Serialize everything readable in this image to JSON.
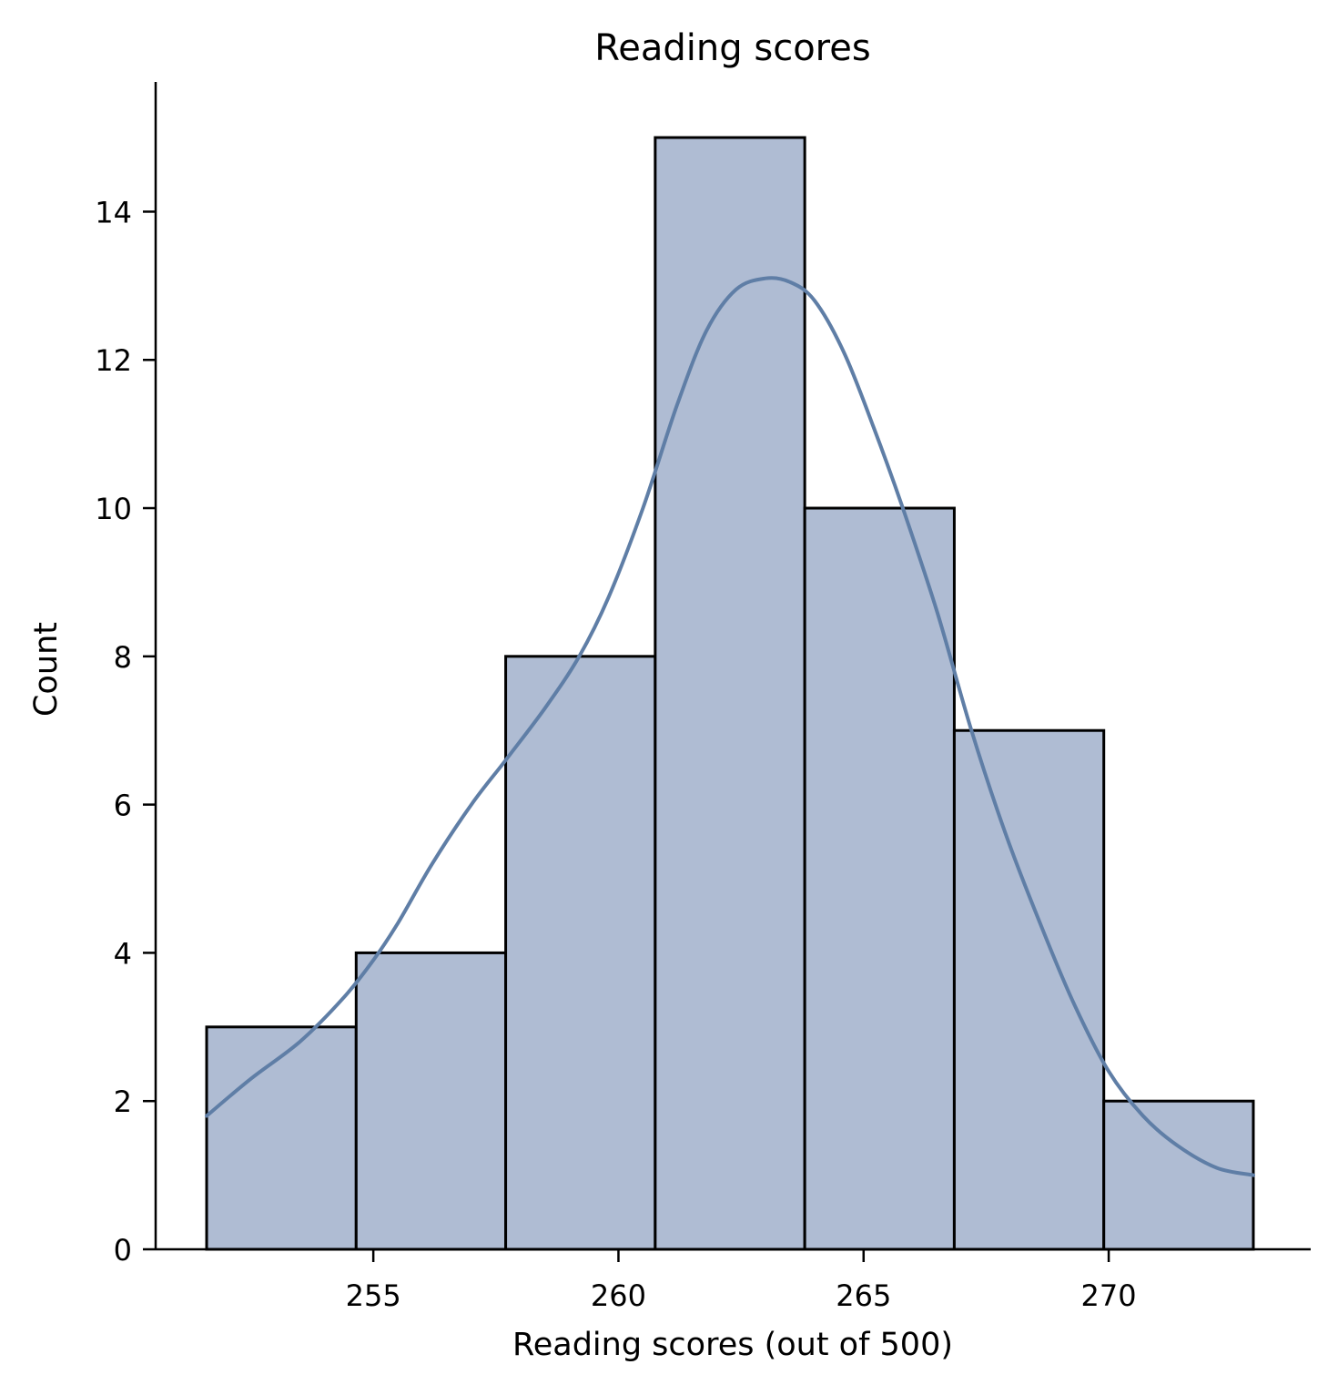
{
  "chart_data": {
    "type": "bar",
    "title": "Reading scores",
    "xlabel": "Reading scores (out of 500)",
    "ylabel": "Count",
    "xlim": [
      250.56,
      274.12
    ],
    "ylim": [
      0,
      15.75
    ],
    "xticks": [
      255,
      260,
      265,
      270
    ],
    "yticks": [
      0,
      2,
      4,
      6,
      8,
      10,
      12,
      14
    ],
    "bins": [
      {
        "x0": 251.6,
        "x1": 254.65,
        "count": 3
      },
      {
        "x0": 254.65,
        "x1": 257.7,
        "count": 4
      },
      {
        "x0": 257.7,
        "x1": 260.75,
        "count": 8
      },
      {
        "x0": 260.75,
        "x1": 263.8,
        "count": 15
      },
      {
        "x0": 263.8,
        "x1": 266.85,
        "count": 10
      },
      {
        "x0": 266.85,
        "x1": 269.9,
        "count": 7
      },
      {
        "x0": 269.9,
        "x1": 272.95,
        "count": 2
      }
    ],
    "kde": {
      "x": [
        251.6,
        252.5,
        253.5,
        254.4,
        255.0,
        255.5,
        256.2,
        257.0,
        257.7,
        258.5,
        259.2,
        259.8,
        260.5,
        261.2,
        261.8,
        262.4,
        263.0,
        263.5,
        264.0,
        264.6,
        265.2,
        265.8,
        266.5,
        267.2,
        267.9,
        268.6,
        269.3,
        270.0,
        270.7,
        271.4,
        272.2,
        272.95
      ],
      "y": [
        1.8,
        2.3,
        2.8,
        3.4,
        3.9,
        4.4,
        5.2,
        6.0,
        6.6,
        7.3,
        8.0,
        8.8,
        10.0,
        11.4,
        12.4,
        12.95,
        13.1,
        13.05,
        12.8,
        12.1,
        11.1,
        10.0,
        8.6,
        7.0,
        5.6,
        4.4,
        3.3,
        2.4,
        1.8,
        1.4,
        1.1,
        1.0
      ]
    },
    "grid": false,
    "legend": "none",
    "colors": {
      "bar_fill": "#afbcd3",
      "bar_edge": "#000000",
      "kde_line": "#5f7ea6",
      "axis": "#000000"
    }
  }
}
